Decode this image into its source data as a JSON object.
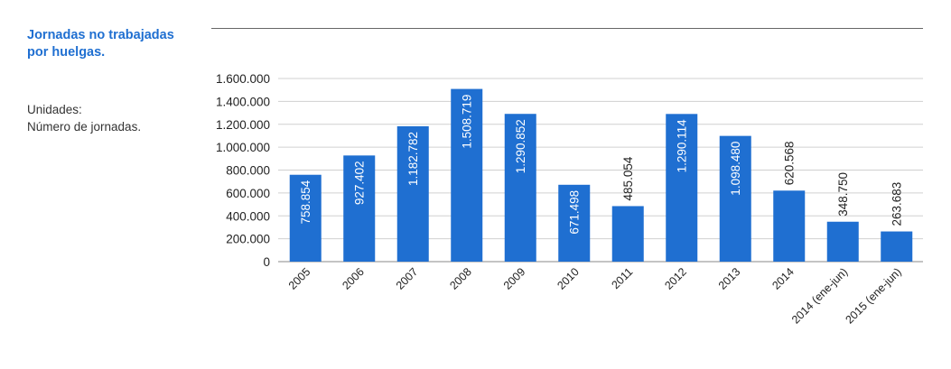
{
  "title_line1": "Jornadas no trabajadas",
  "title_line2": "por huelgas.",
  "units_line1": "Unidades:",
  "units_line2": "Número de jornadas.",
  "colors": {
    "bar": "#1f6fd1",
    "title": "#1f6fd1",
    "grid": "#d0d0d0"
  },
  "chart_data": {
    "type": "bar",
    "categories": [
      "2005",
      "2006",
      "2007",
      "2008",
      "2009",
      "2010",
      "2011",
      "2012",
      "2013",
      "2014",
      "2014 (ene-jun)",
      "2015 (ene-jun)"
    ],
    "values": [
      758854,
      927402,
      1182782,
      1508719,
      1290852,
      671498,
      485054,
      1290114,
      1098480,
      620568,
      348750,
      263683
    ],
    "data_labels": [
      "758.854",
      "927.402",
      "1.182.782",
      "1.508.719",
      "1.290.852",
      "671.498",
      "485.054",
      "1.290.114",
      "1.098.480",
      "620.568",
      "348.750",
      "263.683"
    ],
    "yticks": [
      0,
      200000,
      400000,
      600000,
      800000,
      1000000,
      1200000,
      1400000,
      1600000
    ],
    "ytick_labels": [
      "0",
      "200.000",
      "400.000",
      "600.000",
      "800.000",
      "1.000.000",
      "1.200.000",
      "1.400.000",
      "1.600.000"
    ],
    "ylim": [
      0,
      1600000
    ],
    "grid": true,
    "legend": "none"
  }
}
